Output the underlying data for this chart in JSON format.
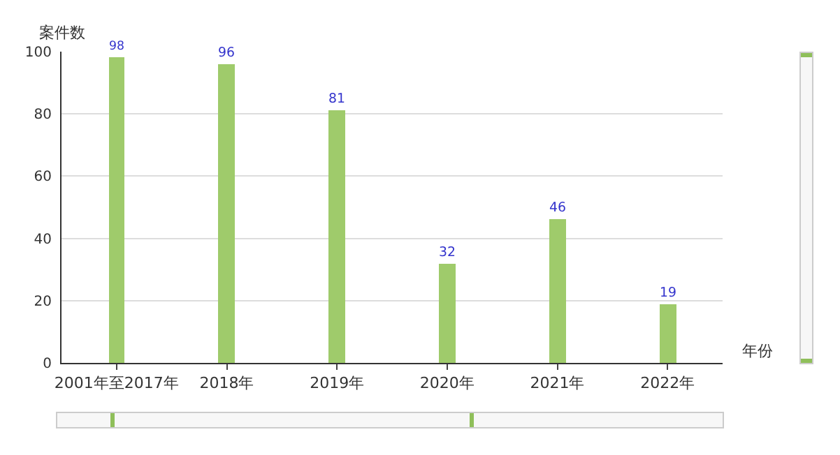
{
  "chart_data": {
    "type": "bar",
    "categories": [
      "2001年至2017年",
      "2018年",
      "2019年",
      "2020年",
      "2021年",
      "2022年"
    ],
    "values": [
      98,
      96,
      81,
      32,
      46,
      19
    ],
    "color": "#9fcb6b",
    "ylabel": "案件数",
    "xlabel": "年份",
    "ylim": [
      0,
      100
    ],
    "yticks": [
      0,
      20,
      40,
      60,
      80,
      100
    ],
    "grid": "y",
    "data_labels": true
  }
}
